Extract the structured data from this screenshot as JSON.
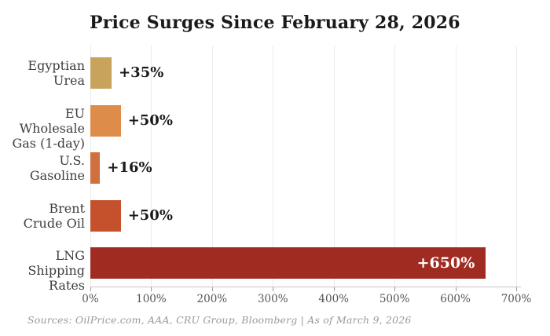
{
  "chart_data": {
    "type": "bar",
    "orientation": "horizontal",
    "title": "Price Surges Since February 28, 2026",
    "categories": [
      "Egyptian Urea",
      "EU Wholesale Gas (1-day)",
      "U.S. Gasoline",
      "Brent Crude Oil",
      "LNG Shipping Rates"
    ],
    "category_lines": [
      [
        "Egyptian",
        "Urea"
      ],
      [
        "EU Wholesale",
        "Gas (1-day)"
      ],
      [
        "U.S.",
        "Gasoline"
      ],
      [
        "Brent",
        "Crude Oil"
      ],
      [
        "LNG Shipping",
        "Rates"
      ]
    ],
    "values": [
      35,
      50,
      16,
      50,
      650
    ],
    "value_labels": [
      "+35%",
      "+50%",
      "+16%",
      "+50%",
      "+650%"
    ],
    "value_label_inside": [
      false,
      false,
      false,
      false,
      true
    ],
    "bar_colors": [
      "#c7a35c",
      "#dd8c4a",
      "#d0703d",
      "#c4502c",
      "#a02b20"
    ],
    "x_tick_values": [
      0,
      100,
      200,
      300,
      400,
      500,
      600,
      700
    ],
    "x_tick_labels": [
      "0%",
      "100%",
      "200%",
      "300%",
      "400%",
      "500%",
      "600%",
      "700%"
    ],
    "xlim": [
      0,
      700
    ],
    "grid": true,
    "legend": "none",
    "xlabel": "",
    "ylabel": ""
  },
  "footer": {
    "source_text": "Sources: OilPrice.com, AAA, CRU Group, Bloomberg  |  As of March 9, 2026"
  },
  "colors": {
    "background": "#ffffff",
    "title_text": "#1a1a1a",
    "category_text": "#3d3d3d",
    "tick_text": "#555555",
    "gridline": "#ececec",
    "axis_line": "#c4c4c4",
    "source_text": "#999999",
    "inside_label_text": "#ffffff"
  }
}
